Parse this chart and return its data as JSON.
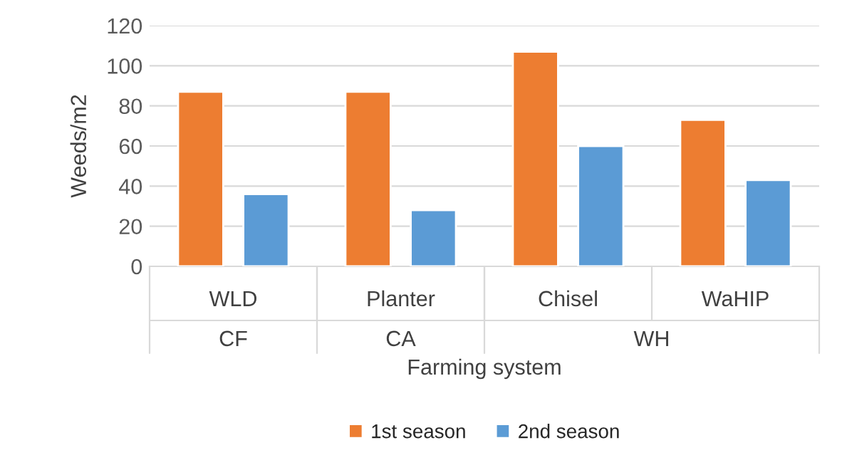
{
  "chart_data": {
    "type": "bar",
    "categories": [
      "WLD",
      "Planter",
      "Chisel",
      "WaHIP"
    ],
    "series": [
      {
        "name": "1st season",
        "color": "#ed7d31",
        "values": [
          87,
          87,
          107,
          73
        ]
      },
      {
        "name": "2nd season",
        "color": "#5b9bd5",
        "values": [
          36,
          28,
          60,
          43
        ]
      }
    ],
    "xlabel": "Farming system",
    "ylabel": "Weeds/m2",
    "annotations": [
      "CF",
      "CA",
      "WH"
    ],
    "ylim": [
      0,
      120
    ],
    "yticks": [
      0,
      20,
      40,
      60,
      80,
      100,
      120
    ],
    "grid": "y",
    "legend": "bottom"
  }
}
